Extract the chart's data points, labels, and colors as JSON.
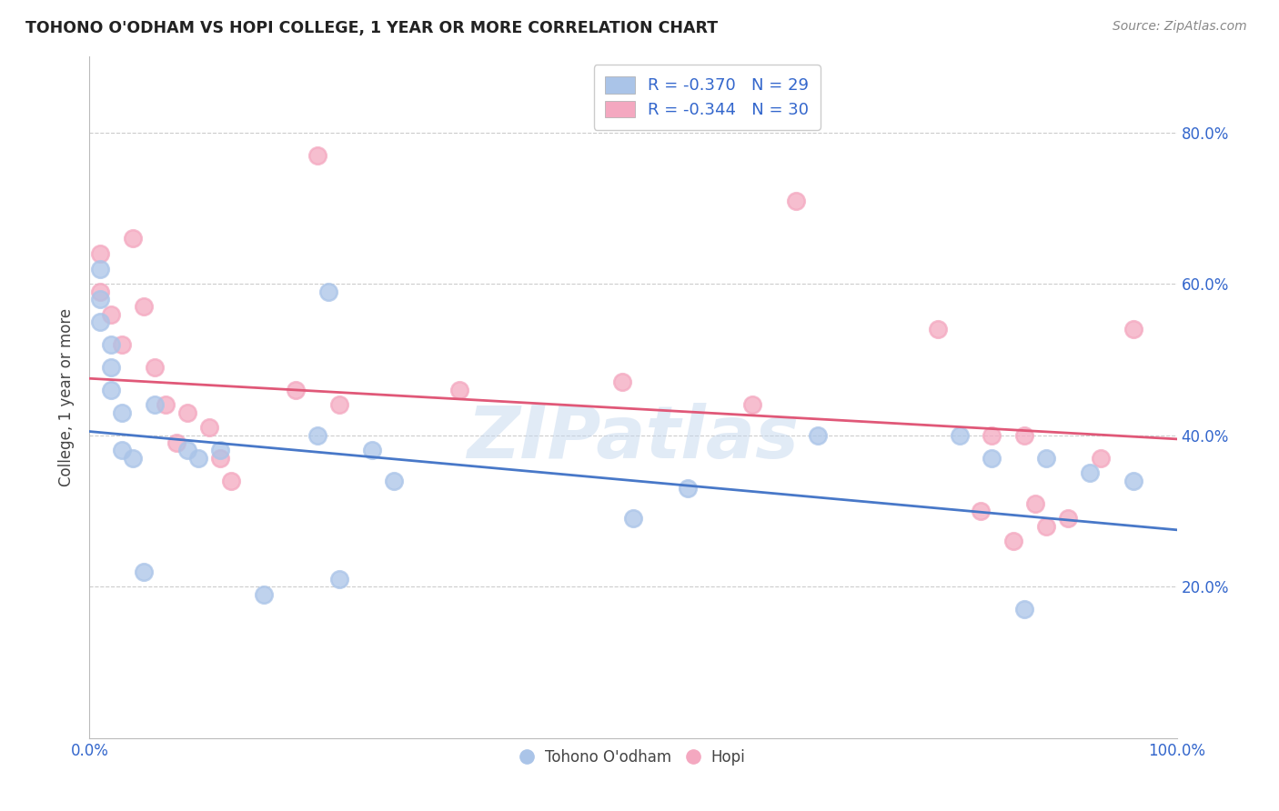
{
  "title": "TOHONO O'ODHAM VS HOPI COLLEGE, 1 YEAR OR MORE CORRELATION CHART",
  "source": "Source: ZipAtlas.com",
  "ylabel": "College, 1 year or more",
  "xlim": [
    0.0,
    1.0
  ],
  "ylim": [
    0.0,
    0.9
  ],
  "blue_R": -0.37,
  "blue_N": 29,
  "pink_R": -0.344,
  "pink_N": 30,
  "blue_color": "#aac4e8",
  "pink_color": "#f4a8c0",
  "blue_line_color": "#4878c8",
  "pink_line_color": "#e05878",
  "legend_text_color": "#3366cc",
  "grid_color": "#cccccc",
  "title_color": "#222222",
  "watermark": "ZIPatlas",
  "blue_x": [
    0.01,
    0.01,
    0.01,
    0.02,
    0.02,
    0.02,
    0.03,
    0.03,
    0.04,
    0.05,
    0.06,
    0.09,
    0.1,
    0.12,
    0.16,
    0.21,
    0.22,
    0.23,
    0.26,
    0.28,
    0.5,
    0.55,
    0.67,
    0.8,
    0.83,
    0.86,
    0.88,
    0.92,
    0.96
  ],
  "blue_y": [
    0.62,
    0.58,
    0.55,
    0.52,
    0.49,
    0.46,
    0.43,
    0.38,
    0.37,
    0.22,
    0.44,
    0.38,
    0.37,
    0.38,
    0.19,
    0.4,
    0.59,
    0.21,
    0.38,
    0.34,
    0.29,
    0.33,
    0.4,
    0.4,
    0.37,
    0.17,
    0.37,
    0.35,
    0.34
  ],
  "pink_x": [
    0.01,
    0.01,
    0.02,
    0.03,
    0.04,
    0.05,
    0.06,
    0.07,
    0.08,
    0.09,
    0.11,
    0.12,
    0.13,
    0.19,
    0.21,
    0.23,
    0.34,
    0.49,
    0.61,
    0.65,
    0.78,
    0.82,
    0.83,
    0.85,
    0.86,
    0.87,
    0.88,
    0.9,
    0.93,
    0.96
  ],
  "pink_y": [
    0.64,
    0.59,
    0.56,
    0.52,
    0.66,
    0.57,
    0.49,
    0.44,
    0.39,
    0.43,
    0.41,
    0.37,
    0.34,
    0.46,
    0.77,
    0.44,
    0.46,
    0.47,
    0.44,
    0.71,
    0.54,
    0.3,
    0.4,
    0.26,
    0.4,
    0.31,
    0.28,
    0.29,
    0.37,
    0.54
  ],
  "blue_trend_y_start": 0.405,
  "blue_trend_y_end": 0.275,
  "pink_trend_y_start": 0.475,
  "pink_trend_y_end": 0.395,
  "marker_size": 180,
  "marker_linewidth": 1.8
}
